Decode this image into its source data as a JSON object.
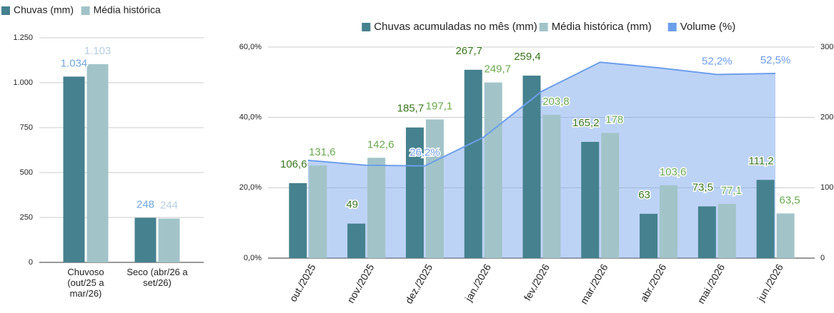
{
  "chart_data": [
    {
      "type": "bar",
      "categories": [
        "Chuvoso (out/25 a mar/26)",
        "Seco  (abr/26 a set/26)"
      ],
      "series": [
        {
          "name": "Chuvas (mm)",
          "color": "#45818e",
          "values": [
            1034,
            248
          ],
          "value_labels": [
            "1.034",
            "248"
          ]
        },
        {
          "name": "Média histórica",
          "color": "#a2c4c9",
          "values": [
            1103,
            244
          ],
          "value_labels": [
            "1.103",
            "244"
          ]
        }
      ],
      "ylim": [
        0,
        1250
      ],
      "yticks": [
        0,
        250,
        500,
        750,
        {
          "value": 1000,
          "label": "1.000"
        },
        {
          "value": 1250,
          "label": "1.250"
        }
      ],
      "grid": true
    },
    {
      "type": "combo",
      "categories": [
        "out./2025",
        "nov./2025",
        "dez./2025",
        "jan./2026",
        "fev./2026",
        "mar./2026",
        "abr./2026",
        "mai./2026",
        "jun./2026"
      ],
      "series": [
        {
          "name": "Chuvas acumuladas no mês (mm)",
          "color": "#45818e",
          "axis": "y2",
          "values": [
            106.6,
            49,
            185.7,
            267.7,
            259.4,
            165.2,
            63,
            73.5,
            111.2
          ],
          "value_labels": [
            "106,6",
            "49",
            "185,7",
            "267,7",
            "259,4",
            "165,2",
            "63",
            "73,5",
            "111,2"
          ]
        },
        {
          "name": "Média histórica (mm)",
          "color": "#a2c4c9",
          "axis": "y2",
          "values": [
            131.6,
            142.6,
            197.1,
            249.7,
            203.8,
            178,
            103.6,
            77.1,
            63.5
          ],
          "value_labels": [
            "131,6",
            "142,6",
            "197,1",
            "249,7",
            "203,8",
            "178",
            "103,6",
            "77,1",
            "63,5"
          ]
        },
        {
          "name": "Volume (%)",
          "color": "#6d9eeb",
          "type": "area",
          "values": [
            27.8,
            26.4,
            26.2,
            34.3,
            47.4,
            55.7,
            54.1,
            52.2,
            52.5
          ],
          "value_labels": [
            null,
            null,
            "26,2%",
            null,
            null,
            null,
            null,
            "52,2%",
            "52,5%"
          ]
        }
      ],
      "ylim": [
        0,
        60
      ],
      "yticks": [
        {
          "value": 0,
          "label": "0,0%"
        },
        {
          "value": 20,
          "label": "20,0%"
        },
        {
          "value": 40,
          "label": "40,0%"
        },
        {
          "value": 60,
          "label": "60,0%"
        }
      ],
      "y2lim": [
        0,
        300
      ],
      "y2ticks": [
        0,
        100,
        200,
        300
      ],
      "grid": true
    }
  ]
}
